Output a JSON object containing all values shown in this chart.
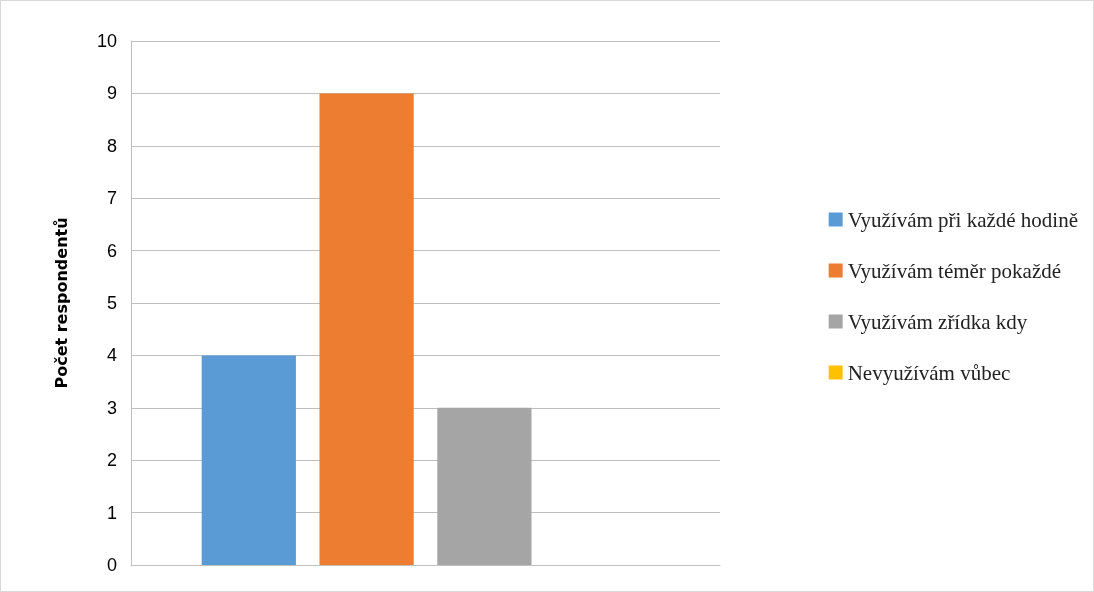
{
  "chart_data": {
    "type": "bar",
    "ylabel": "Počet respondentů",
    "categories": [
      null
    ],
    "series": [
      {
        "name": "Využívám při každé hodině",
        "color": "#5b9bd5",
        "values": [
          4
        ]
      },
      {
        "name": "Využívám téměr pokaždé",
        "color": "#ed7d31",
        "values": [
          9
        ]
      },
      {
        "name": "Využívám zřídka kdy",
        "color": "#a5a5a5",
        "values": [
          3
        ]
      },
      {
        "name": "Nevyužívám vůbec",
        "color": "#ffc000",
        "values": [
          0
        ]
      }
    ],
    "ylim": [
      0,
      10
    ],
    "yticks": [
      0,
      1,
      2,
      3,
      4,
      5,
      6,
      7,
      8,
      9,
      10
    ],
    "grid": "y",
    "legend": "right"
  }
}
